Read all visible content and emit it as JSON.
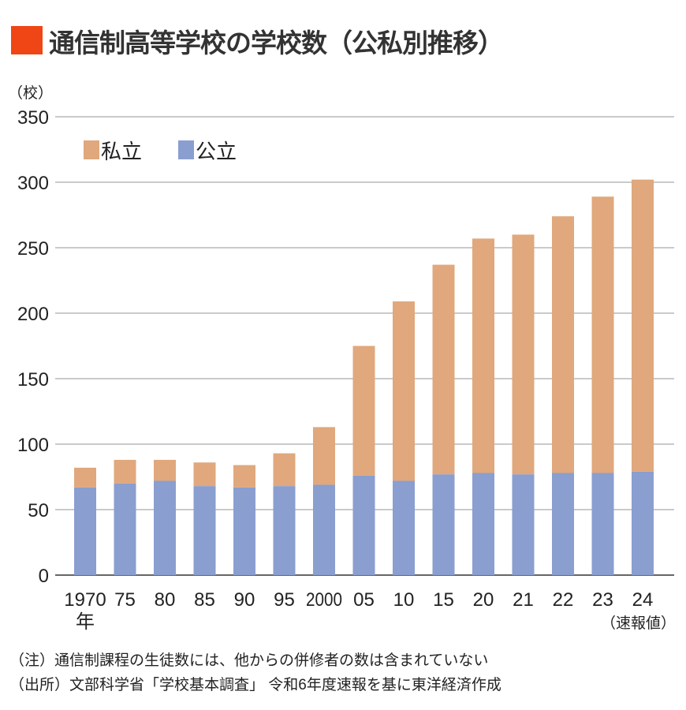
{
  "title": "通信制高等学校の学校数（公私別推移）",
  "colors": {
    "title_mark": "#f04514",
    "private": "#e0a87c",
    "public": "#8a9ecf",
    "grid": "#aaaaaa"
  },
  "chart_data": {
    "type": "bar",
    "stacked": true,
    "title": "通信制高等学校の学校数（公私別推移）",
    "ylabel": "（校）",
    "ylim": [
      0,
      350
    ],
    "yticks": [
      0,
      50,
      100,
      150,
      200,
      250,
      300,
      350
    ],
    "grid": true,
    "legend_position": "top-left",
    "categories": [
      "1970",
      "75",
      "80",
      "85",
      "90",
      "95",
      "2000",
      "05",
      "10",
      "15",
      "20",
      "21",
      "22",
      "23",
      "24"
    ],
    "x_first_suffix": "年",
    "x_last_suffix": "（速報値）",
    "series": [
      {
        "name": "公立",
        "color": "#8a9ecf",
        "values": [
          67,
          70,
          72,
          68,
          67,
          68,
          69,
          76,
          72,
          77,
          78,
          77,
          78,
          78,
          79
        ]
      },
      {
        "name": "私立",
        "color": "#e0a87c",
        "values": [
          15,
          18,
          16,
          18,
          17,
          25,
          44,
          99,
          137,
          160,
          179,
          183,
          196,
          211,
          223
        ]
      }
    ],
    "legend_order": [
      "私立",
      "公立"
    ]
  },
  "notes": {
    "note": "（注）通信制課程の生徒数には、他からの併修者の数は含まれていない",
    "source": "（出所）文部科学省「学校基本調査」 令和6年度速報を基に東洋経済作成"
  }
}
